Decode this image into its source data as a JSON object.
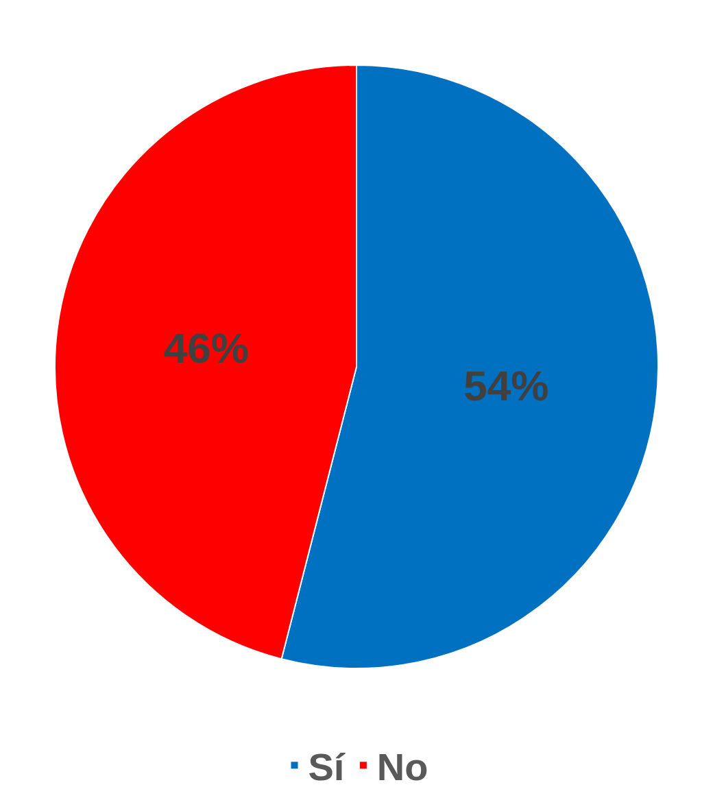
{
  "chart_data": {
    "type": "pie",
    "categories": [
      "Sí",
      "No"
    ],
    "values": [
      54,
      46
    ],
    "colors": [
      "#0070c0",
      "#ff0000"
    ],
    "value_labels": [
      "54%",
      "46%"
    ],
    "legend": "bottom"
  }
}
